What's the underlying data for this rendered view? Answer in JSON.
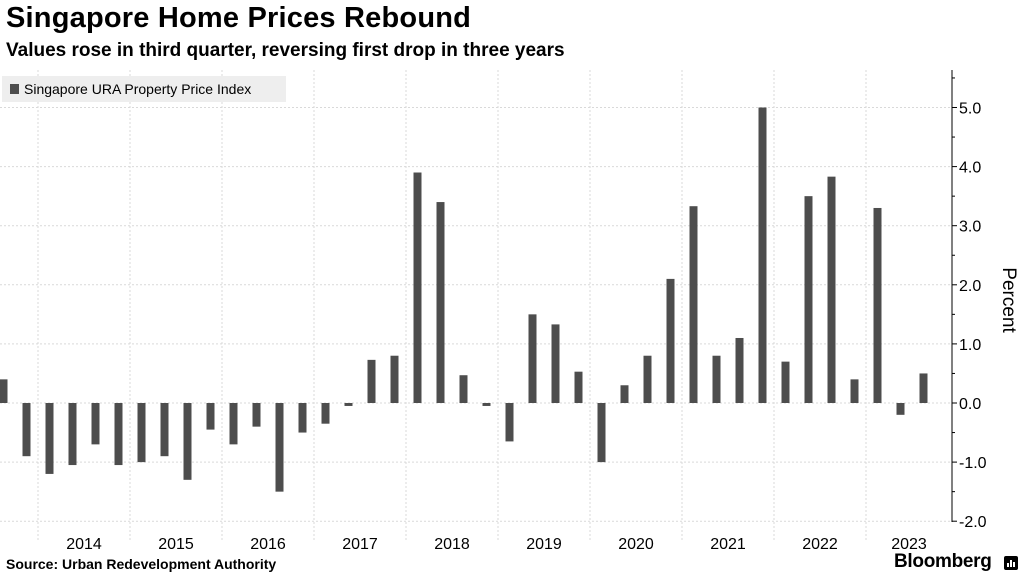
{
  "chart_data": {
    "type": "bar",
    "title": "Singapore Home Prices Rebound",
    "subtitle": "Values rose in third quarter, reversing first drop in three years",
    "legend": "Singapore URA Property Price Index",
    "legend_position": "top-left",
    "ylabel": "Percent",
    "xlabel": "",
    "ylim": [
      -2.0,
      5.5
    ],
    "yticks": [
      "-2.0",
      "-1.0",
      "0.0",
      "1.0",
      "2.0",
      "3.0",
      "4.0",
      "5.0"
    ],
    "ytick_values": [
      -2,
      -1,
      0,
      1,
      2,
      3,
      4,
      5
    ],
    "year_labels": [
      "2014",
      "2015",
      "2016",
      "2017",
      "2018",
      "2019",
      "2020",
      "2021",
      "2022",
      "2023"
    ],
    "categories": [
      "2013 Q3",
      "2013 Q4",
      "2014 Q1",
      "2014 Q2",
      "2014 Q3",
      "2014 Q4",
      "2015 Q1",
      "2015 Q2",
      "2015 Q3",
      "2015 Q4",
      "2016 Q1",
      "2016 Q2",
      "2016 Q3",
      "2016 Q4",
      "2017 Q1",
      "2017 Q2",
      "2017 Q3",
      "2017 Q4",
      "2018 Q1",
      "2018 Q2",
      "2018 Q3",
      "2018 Q4",
      "2019 Q1",
      "2019 Q2",
      "2019 Q3",
      "2019 Q4",
      "2020 Q1",
      "2020 Q2",
      "2020 Q3",
      "2020 Q4",
      "2021 Q1",
      "2021 Q2",
      "2021 Q3",
      "2021 Q4",
      "2022 Q1",
      "2022 Q2",
      "2022 Q3",
      "2022 Q4",
      "2023 Q1",
      "2023 Q2",
      "2023 Q3"
    ],
    "values": [
      0.4,
      -0.9,
      -1.2,
      -1.05,
      -0.7,
      -1.05,
      -1.0,
      -0.9,
      -1.3,
      -0.45,
      -0.7,
      -0.4,
      -1.5,
      -0.5,
      -0.35,
      -0.05,
      0.73,
      0.8,
      3.9,
      3.4,
      0.47,
      -0.05,
      -0.65,
      1.5,
      1.33,
      0.53,
      -1.0,
      0.3,
      0.8,
      2.1,
      3.33,
      0.8,
      1.1,
      5.0,
      0.7,
      3.5,
      3.83,
      0.4,
      3.3,
      -0.2,
      0.5
    ],
    "bar_color": "#4d4d4d",
    "grid": true
  },
  "footer": {
    "source": "Source: Urban Redevelopment Authority",
    "brand": "Bloomberg"
  }
}
